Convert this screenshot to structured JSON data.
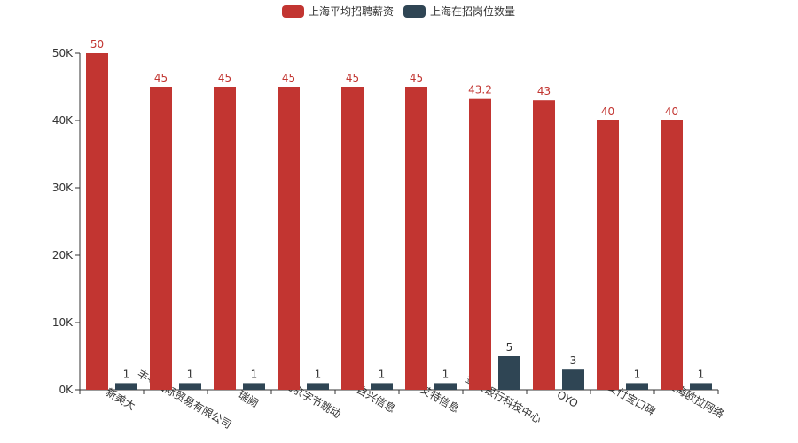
{
  "chart_data": {
    "type": "bar",
    "title": "",
    "xlabel": "",
    "ylabel": "",
    "categories": [
      "新美大",
      "丰寻国际贸易有限公司",
      "瑞阙",
      "北京字节跳动",
      "自兴信息",
      "艾特信息",
      "金服银行科技中心",
      "OYO",
      "支付宝口碑",
      "上海欧拉网络"
    ],
    "series": [
      {
        "name": "上海平均招聘薪资",
        "values": [
          50000,
          45000,
          45000,
          45000,
          45000,
          45000,
          43200,
          43000,
          40000,
          40000
        ],
        "labels": [
          "50",
          "45",
          "45",
          "45",
          "45",
          "45",
          "43.2",
          "43",
          "40",
          "40"
        ],
        "color": "#c23531"
      },
      {
        "name": "上海在招岗位数量",
        "values": [
          1,
          1,
          1,
          1,
          1,
          1,
          5,
          3,
          1,
          1
        ],
        "labels": [
          "1",
          "1",
          "1",
          "1",
          "1",
          "1",
          "5",
          "3",
          "1",
          "1"
        ],
        "color": "#2f4554"
      }
    ],
    "secondary_ylim": [
      0,
      10
    ],
    "ylim": [
      0,
      50000
    ],
    "yticks": [
      "0K",
      "10K",
      "20K",
      "30K",
      "40K",
      "50K"
    ],
    "ytick_values": [
      0,
      10000,
      20000,
      30000,
      40000,
      50000
    ],
    "legend_position": "top-center",
    "grid": false
  }
}
